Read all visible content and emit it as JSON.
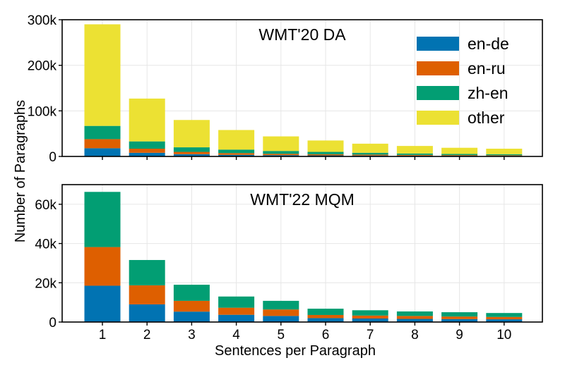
{
  "chart_data": [
    {
      "type": "bar",
      "stacked": true,
      "title": "WMT'20 DA",
      "categories": [
        "1",
        "2",
        "3",
        "4",
        "5",
        "6",
        "7",
        "8",
        "9",
        "10"
      ],
      "series": [
        {
          "name": "en-de",
          "color": "#0173b2",
          "values": [
            18000,
            8000,
            5000,
            3500,
            2800,
            2300,
            2000,
            1700,
            1500,
            1300
          ]
        },
        {
          "name": "en-ru",
          "color": "#de5f00",
          "values": [
            20000,
            9000,
            5000,
            3800,
            3000,
            2500,
            2000,
            1600,
            1400,
            1300
          ]
        },
        {
          "name": "zh-en",
          "color": "#029e73",
          "values": [
            29000,
            16000,
            10000,
            7700,
            6200,
            5200,
            4000,
            3200,
            2600,
            2400
          ]
        },
        {
          "name": "other",
          "color": "#ece133",
          "values": [
            223000,
            94000,
            60000,
            43000,
            32000,
            25000,
            20000,
            16500,
            13500,
            12000
          ]
        }
      ],
      "ylim": [
        0,
        300000
      ],
      "yticks": [
        0,
        100000,
        200000,
        300000
      ],
      "ytick_labels": [
        "0",
        "100k",
        "200k",
        "300k"
      ],
      "grid": true,
      "legend": "top-right"
    },
    {
      "type": "bar",
      "stacked": true,
      "title": "WMT'22 MQM",
      "categories": [
        "1",
        "2",
        "3",
        "4",
        "5",
        "6",
        "7",
        "8",
        "9",
        "10"
      ],
      "series": [
        {
          "name": "en-de",
          "color": "#0173b2",
          "values": [
            18500,
            9000,
            5300,
            3700,
            3100,
            2000,
            1800,
            1600,
            1500,
            1400
          ]
        },
        {
          "name": "en-ru",
          "color": "#de5f00",
          "values": [
            19700,
            9700,
            5500,
            3600,
            3300,
            1600,
            1500,
            1500,
            1300,
            1200
          ]
        },
        {
          "name": "zh-en",
          "color": "#029e73",
          "values": [
            28100,
            12900,
            8200,
            5700,
            4400,
            3200,
            2700,
            2300,
            2200,
            2000
          ]
        }
      ],
      "ylim": [
        0,
        70000
      ],
      "yticks": [
        0,
        20000,
        40000,
        60000
      ],
      "ytick_labels": [
        "0",
        "20k",
        "40k",
        "60k"
      ],
      "xlabel": "Sentences per Paragraph",
      "grid": true
    }
  ],
  "shared_ylabel": "Number of Paragraphs"
}
